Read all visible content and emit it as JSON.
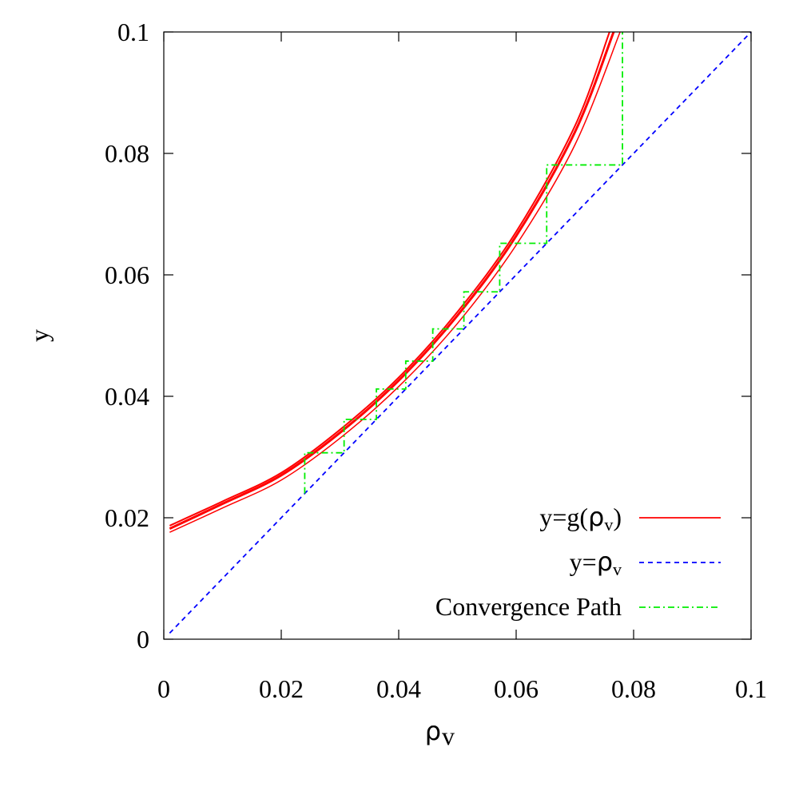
{
  "chart_data": {
    "type": "line",
    "xlabel": "ρ_v",
    "ylabel": "y",
    "xlim": [
      0,
      0.1
    ],
    "ylim": [
      0,
      0.1
    ],
    "x_ticks": [
      "0",
      "0.02",
      "0.04",
      "0.06",
      "0.08",
      "0.1"
    ],
    "y_ticks": [
      "0",
      "0.02",
      "0.04",
      "0.06",
      "0.08",
      "0.1"
    ],
    "grid": false,
    "legend_position": "bottom-right",
    "series": [
      {
        "name": "y=g(ρ_v)",
        "color": "#ff0000",
        "style": "solid",
        "x": [
          0.001,
          0.01,
          0.02,
          0.03,
          0.04,
          0.05,
          0.06,
          0.07,
          0.0759
        ],
        "y": [
          0.0187,
          0.0227,
          0.0274,
          0.0345,
          0.0431,
          0.0539,
          0.0671,
          0.0845,
          0.1
        ],
        "variants": [
          {
            "x": [
              0.001,
              0.01,
              0.02,
              0.03,
              0.04,
              0.05,
              0.06,
              0.07,
              0.0766
            ],
            "y": [
              0.0182,
              0.0223,
              0.027,
              0.034,
              0.0426,
              0.0533,
              0.0664,
              0.0835,
              0.1
            ],
            "weight": "thick"
          },
          {
            "x": [
              0.001,
              0.01,
              0.02,
              0.03,
              0.04,
              0.05,
              0.06,
              0.07,
              0.0777
            ],
            "y": [
              0.0176,
              0.0216,
              0.0262,
              0.0331,
              0.0416,
              0.052,
              0.0649,
              0.0814,
              0.1
            ],
            "weight": "thin"
          }
        ]
      },
      {
        "name": "y=ρ_v",
        "color": "#0000ff",
        "style": "dashed",
        "x": [
          0.001,
          0.1
        ],
        "y": [
          0.001,
          0.1
        ]
      },
      {
        "name": "Convergence Path",
        "color": "#00ee00",
        "style": "dash-dot",
        "x": [
          0.024,
          0.024,
          0.0307,
          0.0307,
          0.0362,
          0.0362,
          0.0412,
          0.0412,
          0.0458,
          0.0458,
          0.0511,
          0.0511,
          0.0572,
          0.0572,
          0.0652,
          0.0652,
          0.0781,
          0.0781
        ],
        "y": [
          0.024,
          0.0307,
          0.0307,
          0.0362,
          0.0362,
          0.0412,
          0.0412,
          0.0458,
          0.0458,
          0.0511,
          0.0511,
          0.0572,
          0.0572,
          0.0652,
          0.0652,
          0.0781,
          0.0781,
          0.1
        ]
      }
    ]
  },
  "legend": {
    "entries": [
      {
        "prefix": "y=g(",
        "symbol": "ρ",
        "sub": "v",
        "suffix": ")",
        "color": "#ff0000",
        "dash": ""
      },
      {
        "prefix": "y=",
        "symbol": "ρ",
        "sub": "v",
        "suffix": "",
        "color": "#0000ff",
        "dash": "6,5"
      },
      {
        "prefix": "Convergence Path",
        "symbol": "",
        "sub": "",
        "suffix": "",
        "color": "#00ee00",
        "dash": "8,4,2,4"
      }
    ]
  },
  "axis_titles": {
    "x_symbol": "ρ",
    "x_sub": "v",
    "y": "y"
  }
}
